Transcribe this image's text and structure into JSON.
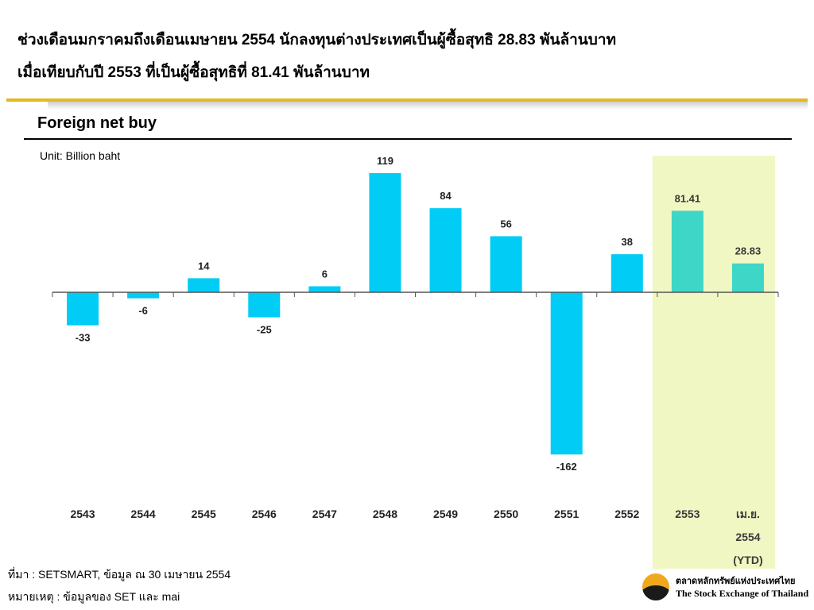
{
  "headline": {
    "line1": "ช่วงเดือนมกราคมถึงเดือนเมษายน 2554 นักลงทุนต่างประเทศเป็นผู้ซื้อสุทธิ 28.83 พันล้านบาท",
    "line2": "เมื่อเทียบกับปี 2553 ที่เป็นผู้ซื้อสุทธิที่ 81.41 พันล้านบาท"
  },
  "panel_title": "Foreign net buy",
  "chart_data": {
    "type": "bar",
    "unit_label": "Unit: Billion baht",
    "categories": [
      [
        "2543"
      ],
      [
        "2544"
      ],
      [
        "2545"
      ],
      [
        "2546"
      ],
      [
        "2547"
      ],
      [
        "2548"
      ],
      [
        "2549"
      ],
      [
        "2550"
      ],
      [
        "2551"
      ],
      [
        "2552"
      ],
      [
        "2553"
      ],
      [
        "เม.ย.",
        "2554",
        "(YTD)"
      ]
    ],
    "values": [
      -33,
      -6,
      14,
      -25,
      6,
      119,
      84,
      56,
      -162,
      38,
      81.41,
      28.83
    ],
    "value_labels": [
      "-33",
      "-6",
      "14",
      "-25",
      "6",
      "119",
      "84",
      "56",
      "-162",
      "38",
      "81.41",
      "28.83"
    ],
    "highlighted_categories": [
      "2553",
      "เม.ย. 2554 (YTD)"
    ],
    "colors": {
      "bar": "#00ccf5",
      "bar_highlight": "#3dd6c7",
      "highlight_bg": "#f1f7c3",
      "highlight_text": "#3a3a3a",
      "axis": "#555555"
    },
    "ylim": [
      -175,
      135
    ],
    "grid": false,
    "legend": "none"
  },
  "footer": {
    "source": "ที่มา : SETSMART, ข้อมูล ณ 30 เมษายน 2554",
    "note": "หมายเหตุ : ข้อมูลของ SET และ mai"
  },
  "logo": {
    "name_th": "ตลาดหลักทรัพย์แห่งประเทศไทย",
    "name_en": "The Stock Exchange of Thailand"
  }
}
